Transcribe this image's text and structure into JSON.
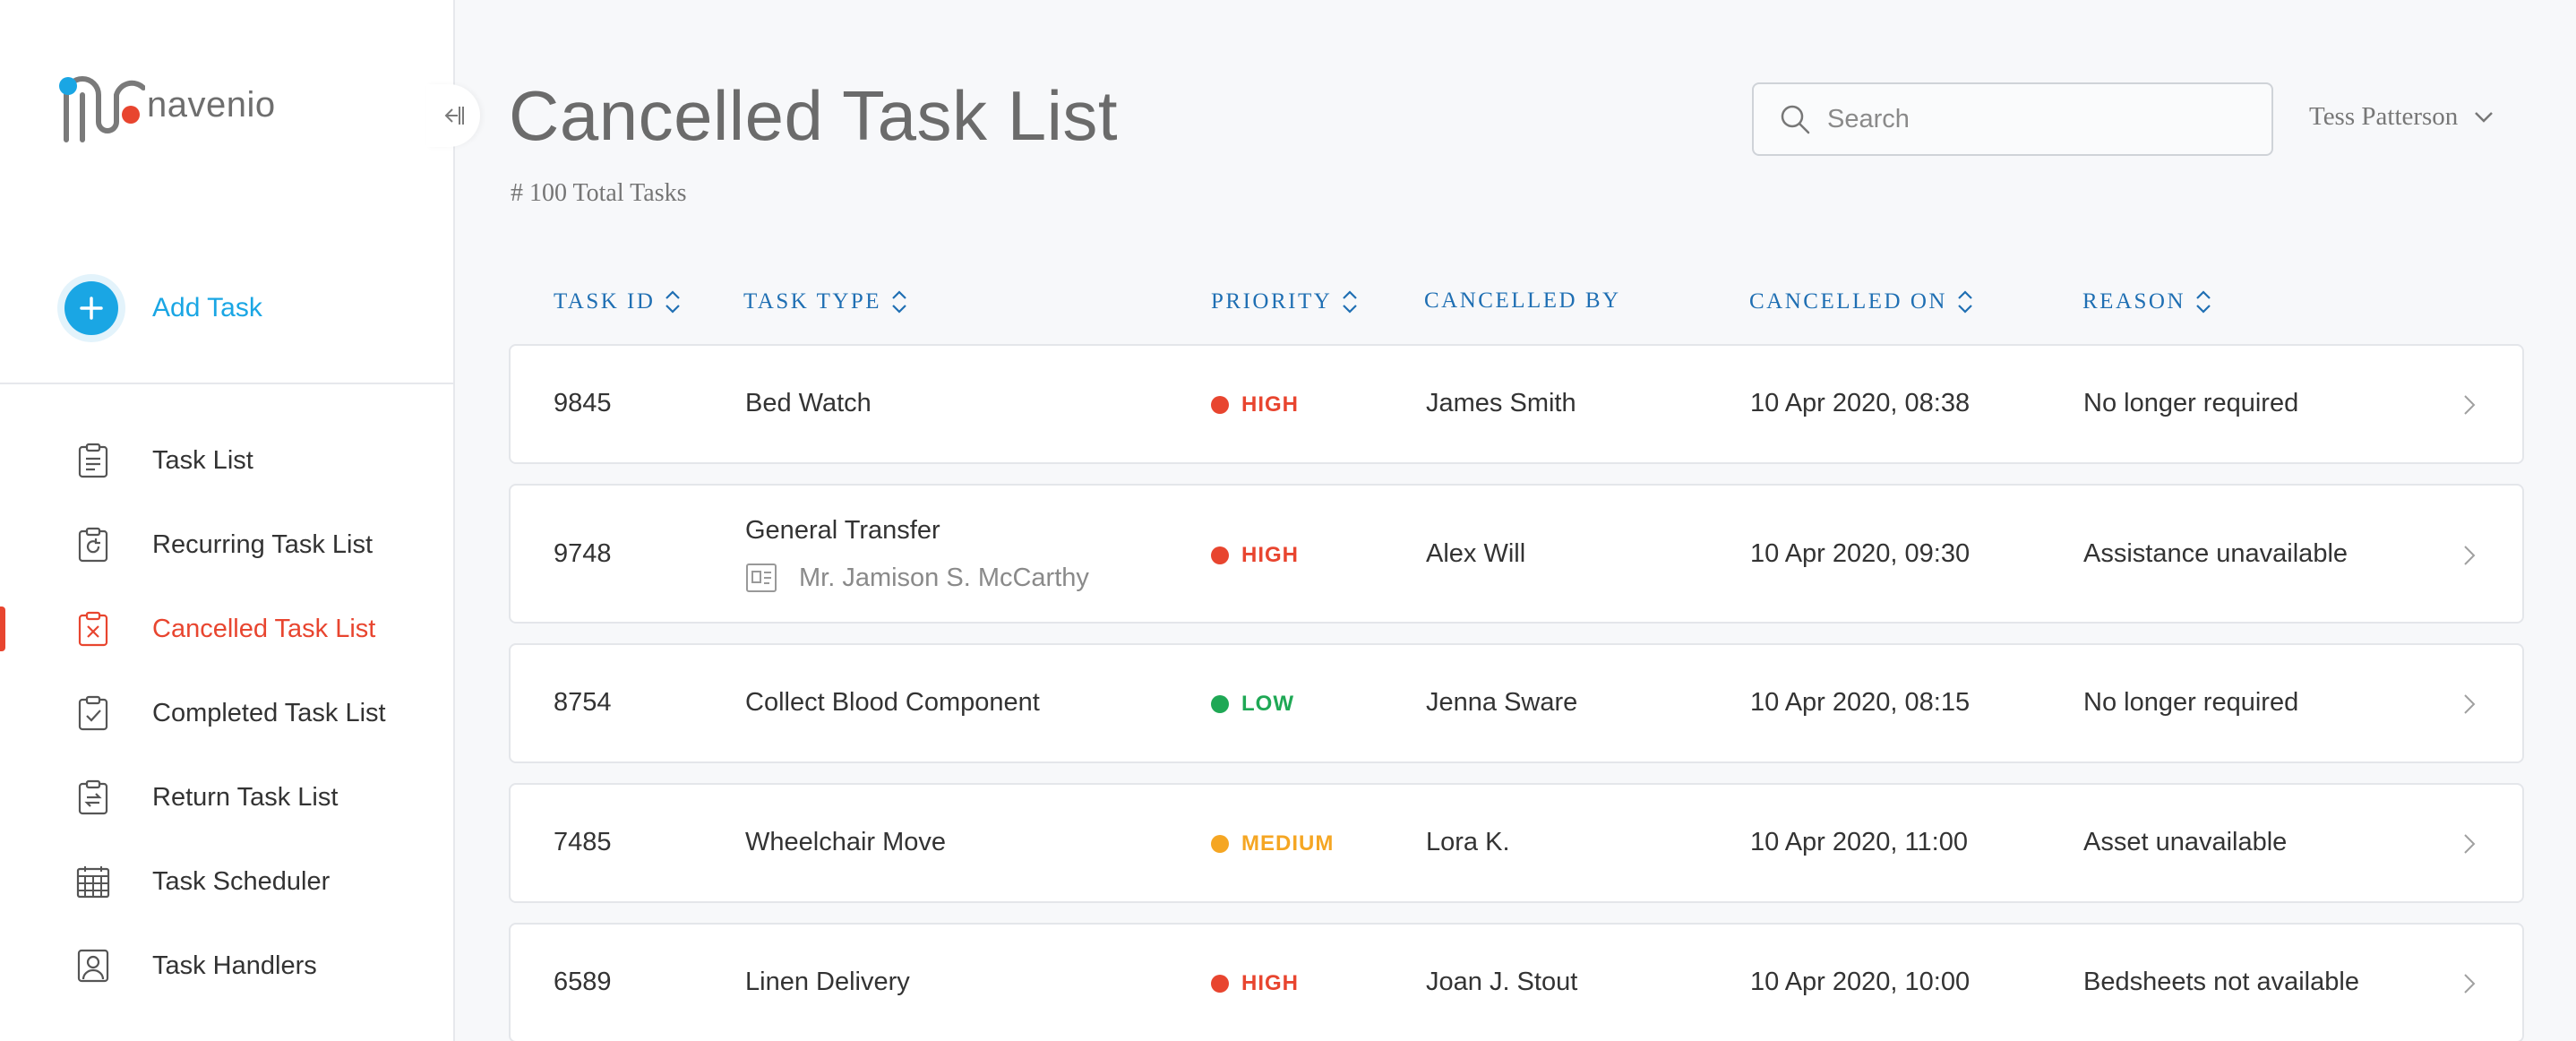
{
  "app": {
    "logo_text": "navenio",
    "brand_blue": "#1aa6e4",
    "brand_red": "#e8452f"
  },
  "sidebar": {
    "add_task_label": "Add Task",
    "items": [
      {
        "label": "Task List",
        "icon": "clipboard-list-icon",
        "active": false
      },
      {
        "label": "Recurring Task List",
        "icon": "clipboard-recurring-icon",
        "active": false
      },
      {
        "label": "Cancelled Task List",
        "icon": "clipboard-cancel-icon",
        "active": true
      },
      {
        "label": "Completed Task List",
        "icon": "clipboard-check-icon",
        "active": false
      },
      {
        "label": "Return Task List",
        "icon": "clipboard-return-icon",
        "active": false
      },
      {
        "label": "Task Scheduler",
        "icon": "calendar-icon",
        "active": false
      },
      {
        "label": "Task Handlers",
        "icon": "user-badge-icon",
        "active": false
      }
    ]
  },
  "header": {
    "title": "Cancelled Task List",
    "total": "# 100 Total Tasks",
    "search_placeholder": "Search",
    "user_name": "Tess Patterson"
  },
  "table": {
    "columns": [
      {
        "label": "TASK ID",
        "sortable": true
      },
      {
        "label": "TASK TYPE",
        "sortable": true
      },
      {
        "label": "PRIORITY",
        "sortable": true
      },
      {
        "label": "CANCELLED BY",
        "sortable": false
      },
      {
        "label": "CANCELLED ON",
        "sortable": true
      },
      {
        "label": "REASON",
        "sortable": true
      }
    ],
    "priority_colors": {
      "HIGH": "#e8452f",
      "LOW": "#1fa855",
      "MEDIUM": "#f5a623"
    },
    "rows": [
      {
        "id": "9845",
        "type": "Bed Watch",
        "patient": "",
        "priority": "HIGH",
        "by": "James Smith",
        "on": "10 Apr 2020,  08:38",
        "reason": "No longer required"
      },
      {
        "id": "9748",
        "type": "General Transfer",
        "patient": "Mr. Jamison S. McCarthy",
        "priority": "HIGH",
        "by": "Alex Will",
        "on": "10 Apr 2020,  09:30",
        "reason": "Assistance unavailable"
      },
      {
        "id": "8754",
        "type": "Collect Blood Component",
        "patient": "",
        "priority": "LOW",
        "by": "Jenna Sware",
        "on": "10 Apr 2020,  08:15",
        "reason": "No longer required"
      },
      {
        "id": "7485",
        "type": "Wheelchair Move",
        "patient": "",
        "priority": "MEDIUM",
        "by": "Lora K.",
        "on": "10 Apr 2020,  11:00",
        "reason": "Asset unavailable"
      },
      {
        "id": "6589",
        "type": "Linen Delivery",
        "patient": "",
        "priority": "HIGH",
        "by": "Joan J. Stout",
        "on": "10 Apr 2020,  10:00",
        "reason": "Bedsheets not available"
      }
    ]
  }
}
